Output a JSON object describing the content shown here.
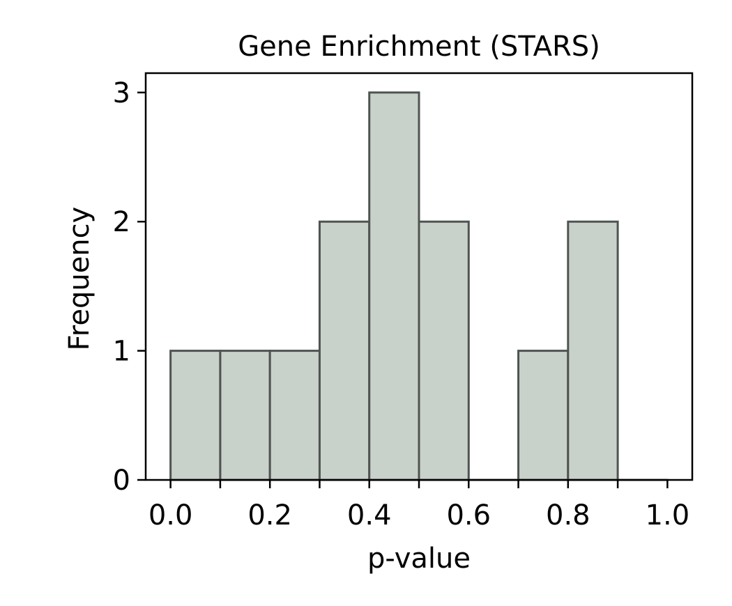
{
  "chart_data": {
    "type": "bar",
    "title": "Gene Enrichment (STARS)",
    "xlabel": "p-value",
    "ylabel": "Frequency",
    "bins": [
      {
        "x0": 0.0,
        "x1": 0.1,
        "count": 1
      },
      {
        "x0": 0.1,
        "x1": 0.2,
        "count": 1
      },
      {
        "x0": 0.2,
        "x1": 0.3,
        "count": 1
      },
      {
        "x0": 0.3,
        "x1": 0.4,
        "count": 2
      },
      {
        "x0": 0.4,
        "x1": 0.5,
        "count": 3
      },
      {
        "x0": 0.5,
        "x1": 0.6,
        "count": 2
      },
      {
        "x0": 0.6,
        "x1": 0.7,
        "count": 0
      },
      {
        "x0": 0.7,
        "x1": 0.8,
        "count": 1
      },
      {
        "x0": 0.8,
        "x1": 0.9,
        "count": 2
      },
      {
        "x0": 0.9,
        "x1": 1.0,
        "count": 0
      }
    ],
    "xlim": [
      -0.05,
      1.05
    ],
    "ylim": [
      0,
      3.15
    ],
    "xticks": [
      0.0,
      0.2,
      0.4,
      0.6,
      0.8,
      1.0
    ],
    "xtick_labels": [
      "0.0",
      "0.2",
      "0.4",
      "0.6",
      "0.8",
      "1.0"
    ],
    "xticks_minor": [
      0.1,
      0.3,
      0.5,
      0.7,
      0.9
    ],
    "yticks": [
      0,
      1,
      2,
      3
    ],
    "ytick_labels": [
      "0",
      "1",
      "2",
      "3"
    ],
    "grid": false,
    "colors": {
      "bar_fill": "#c8d2cb",
      "bar_edge": "#4f5451",
      "axis": "#000000"
    }
  }
}
